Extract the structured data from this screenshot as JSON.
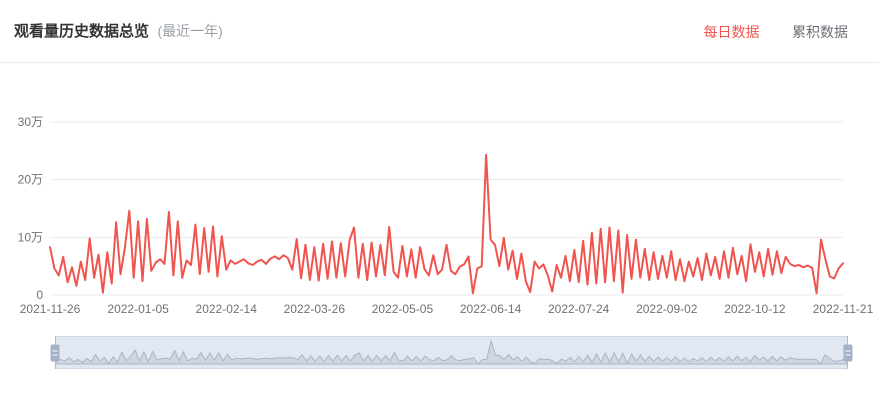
{
  "header": {
    "title": "观看量历史数据总览",
    "subtitle": "(最近一年)",
    "tabs": [
      {
        "label": "每日数据",
        "active": true
      },
      {
        "label": "累积数据",
        "active": false
      }
    ]
  },
  "colors": {
    "accent": "#f0544f",
    "inactive_tab": "#6b7075",
    "axis_label": "#6e7277",
    "gridline": "#ebebeb",
    "datazoom_track": "#e2e8f2",
    "datazoom_border": "#ccd6e4",
    "datazoom_area_fill": "#cdd6e2",
    "datazoom_area_line": "#a9b5c6",
    "datazoom_handle": "#a3b2c7"
  },
  "datazoom": {
    "start_percent": 0,
    "end_percent": 100
  },
  "chart_data": {
    "type": "line",
    "title": "观看量历史数据总览 (最近一年)",
    "legend_position": "none",
    "grid": "horizontal-only",
    "line_color": "#f0544f",
    "x_axis": {
      "type": "date",
      "start": "2021-11-26",
      "end": "2022-11-21",
      "point_interval_days": 2,
      "tick_labels": [
        "2021-11-26",
        "2022-01-05",
        "2022-02-14",
        "2022-03-26",
        "2022-05-05",
        "2022-06-14",
        "2022-07-24",
        "2022-09-02",
        "2022-10-12",
        "2022-11-21"
      ]
    },
    "y_axis": {
      "ylim": [
        0,
        300000
      ],
      "tick_values": [
        0,
        100000,
        200000,
        300000
      ],
      "tick_labels": [
        "0",
        "10万",
        "20万",
        "30万"
      ],
      "unit": "views"
    },
    "values_unit": "万 (10,000 views)",
    "series": [
      {
        "name": "每日数据",
        "values": [
          8.3,
          4.6,
          3.4,
          6.6,
          2.2,
          4.8,
          1.6,
          5.8,
          2.6,
          9.8,
          3.0,
          7.0,
          0.4,
          7.4,
          2.0,
          12.6,
          3.6,
          8.2,
          14.6,
          3.0,
          12.8,
          2.4,
          13.2,
          4.2,
          5.6,
          6.2,
          5.4,
          14.4,
          3.4,
          12.8,
          3.0,
          6.0,
          5.2,
          12.2,
          3.6,
          11.6,
          4.0,
          11.9,
          3.2,
          10.2,
          4.4,
          6.0,
          5.4,
          5.8,
          6.2,
          5.5,
          5.2,
          5.8,
          6.1,
          5.4,
          6.3,
          6.7,
          6.2,
          6.9,
          6.4,
          4.4,
          9.7,
          2.9,
          8.7,
          2.6,
          8.3,
          2.5,
          8.9,
          2.8,
          9.3,
          3.0,
          9.0,
          3.2,
          9.5,
          11.7,
          3.0,
          8.9,
          2.6,
          9.1,
          3.2,
          8.7,
          3.4,
          11.8,
          4.0,
          3.0,
          8.5,
          3.2,
          7.9,
          3.0,
          8.3,
          4.5,
          3.4,
          6.9,
          3.6,
          4.4,
          8.7,
          4.2,
          3.6,
          4.9,
          5.3,
          6.7,
          0.3,
          4.6,
          5.0,
          24.3,
          9.6,
          8.7,
          5.0,
          9.9,
          4.4,
          7.7,
          2.8,
          7.2,
          2.4,
          0.5,
          5.8,
          4.6,
          5.3,
          3.4,
          0.6,
          5.2,
          3.0,
          6.8,
          2.4,
          7.8,
          2.2,
          9.4,
          1.8,
          10.8,
          2.0,
          11.5,
          2.2,
          11.7,
          2.4,
          11.2,
          0.4,
          10.4,
          2.8,
          9.6,
          3.0,
          8.0,
          2.6,
          7.4,
          2.8,
          6.8,
          3.0,
          7.6,
          2.6,
          6.2,
          2.4,
          5.8,
          3.2,
          6.4,
          2.6,
          7.2,
          3.4,
          6.6,
          2.8,
          7.6,
          3.0,
          8.2,
          3.6,
          6.8,
          2.4,
          8.8,
          4.0,
          7.4,
          3.2,
          8.0,
          3.5,
          7.6,
          3.8,
          6.6,
          5.4,
          5.0,
          5.2,
          4.8,
          5.1,
          4.7,
          0.3,
          9.6,
          6.2,
          3.2,
          2.9,
          4.6,
          5.5
        ]
      }
    ]
  }
}
